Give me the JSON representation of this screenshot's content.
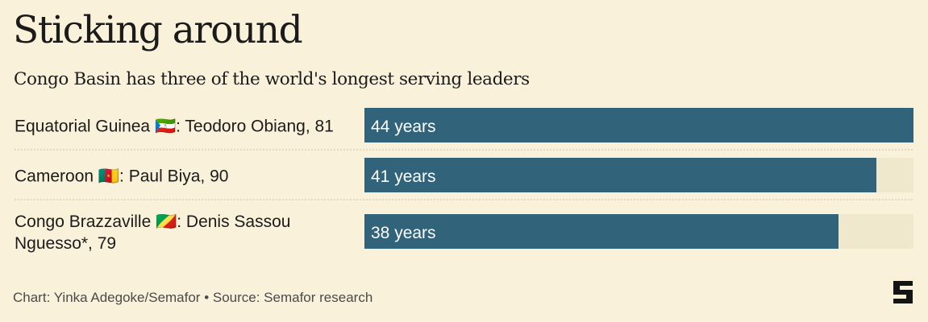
{
  "title": "Sticking around",
  "subtitle": "Congo Basin has three of the world's longest serving leaders",
  "footer": "Chart: Yinka Adegoke/Semafor • Source: Semafor research",
  "colors": {
    "background": "#f9f1d9",
    "bar": "#31637a",
    "track": "#efe8cd",
    "separator": "#c8c3b0"
  },
  "logo": {
    "icon": "semafor-logo-icon"
  },
  "chart_data": {
    "type": "bar",
    "orientation": "horizontal",
    "categories": [
      "Equatorial Guinea 🇬🇶: Teodoro Obiang, 81",
      "Cameroon 🇨🇲: Paul Biya, 90",
      "Congo Brazzaville 🇨🇬: Denis Sassou Nguesso*, 79"
    ],
    "category_lines": [
      [
        "Equatorial Guinea 🇬🇶: Teodoro Obiang, 81"
      ],
      [
        "Cameroon 🇨🇲: Paul Biya, 90"
      ],
      [
        "Congo Brazzaville 🇨🇬: Denis Sassou",
        "Nguesso*, 79"
      ]
    ],
    "values": [
      44,
      41,
      38
    ],
    "value_labels": [
      "44 years",
      "41 years",
      "38 years"
    ],
    "unit": "years",
    "xlim": [
      0,
      44
    ],
    "grid": false,
    "legend": "none"
  }
}
